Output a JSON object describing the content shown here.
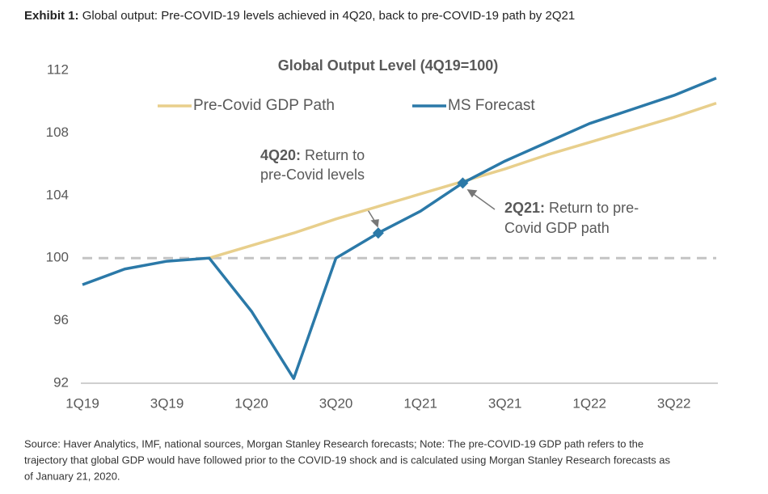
{
  "header": {
    "label": "Exhibit 1:",
    "text": "Global output: Pre-COVID-19 levels achieved in 4Q20, back to pre-COVID-19 path by 2Q21"
  },
  "chart_data": {
    "type": "line",
    "title": "Global Output Level (4Q19=100)",
    "categories": [
      "1Q19",
      null,
      "3Q19",
      null,
      "1Q20",
      null,
      "3Q20",
      null,
      "1Q21",
      null,
      "3Q21",
      null,
      "1Q22",
      null,
      "3Q22",
      null
    ],
    "series": [
      {
        "name": "Pre-Covid GDP Path",
        "color": "#e8cf8c",
        "values": [
          null,
          null,
          null,
          100,
          100.8,
          101.6,
          102.5,
          103.3,
          104.1,
          104.9,
          105.7,
          106.6,
          107.4,
          108.2,
          109.0,
          109.9
        ]
      },
      {
        "name": "MS Forecast",
        "color": "#2b79a8",
        "values": [
          98.3,
          99.3,
          99.8,
          100,
          96.6,
          92.3,
          100,
          101.6,
          103.0,
          104.8,
          106.2,
          107.4,
          108.6,
          109.5,
          110.4,
          111.5
        ],
        "markers": [
          7,
          9
        ]
      }
    ],
    "ylim": [
      92,
      112
    ],
    "yticks": [
      92,
      96,
      100,
      104,
      108,
      112
    ],
    "reference_line": {
      "value": 100,
      "color": "#c4c4c4"
    },
    "legend": "top",
    "annotations": [
      {
        "label": "4Q20:",
        "text": [
          "Return to",
          "pre-Covid levels"
        ]
      },
      {
        "label": "2Q21:",
        "text": [
          "Return to pre-",
          "Covid GDP path"
        ]
      }
    ]
  },
  "footer": {
    "lines": [
      "Source: Haver Analytics, IMF, national sources, Morgan Stanley Research forecasts; Note: The pre-COVID-19 GDP path refers to the",
      "trajectory that global GDP would have followed prior to the COVID-19 shock and is calculated using Morgan Stanley Research forecasts as",
      "of January 21, 2020."
    ]
  }
}
